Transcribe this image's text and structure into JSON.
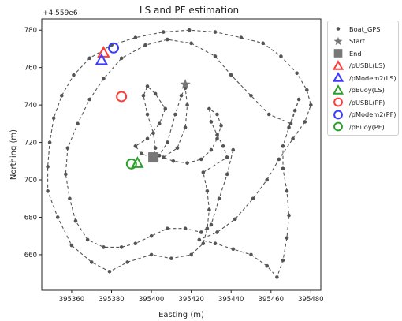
{
  "chart_data": {
    "type": "scatter",
    "title": "LS and PF estimation",
    "offset_label": "+4.559e6",
    "xlabel": "Easting (m)",
    "ylabel": "Northing (m)",
    "xlim": [
      395345,
      395485
    ],
    "ylim": [
      641,
      786
    ],
    "x_ticks": [
      395360,
      395380,
      395400,
      395420,
      395440,
      395460,
      395480
    ],
    "y_ticks": [
      660,
      680,
      700,
      720,
      740,
      760,
      780
    ],
    "x_tick_labels": [
      "395360",
      "395380",
      "395400",
      "395420",
      "395440",
      "395460",
      "395480"
    ],
    "y_tick_labels": [
      "660",
      "680",
      "700",
      "720",
      "740",
      "760",
      "780"
    ],
    "grid": false,
    "legend_position": "outside-right",
    "track_color": "#555555",
    "series": [
      {
        "name": "Boat_GPS",
        "marker": "dot",
        "color": "#555555",
        "points": [
          [
            395400,
            712
          ],
          [
            395395,
            714
          ],
          [
            395392,
            718
          ],
          [
            395398,
            722
          ],
          [
            395404,
            730
          ],
          [
            395407,
            738
          ],
          [
            395402,
            746
          ],
          [
            395398,
            750
          ],
          [
            395396,
            745
          ],
          [
            395398,
            735
          ],
          [
            395401,
            725
          ],
          [
            395402,
            717
          ],
          [
            395401,
            712
          ],
          [
            395404,
            713
          ],
          [
            395408,
            720
          ],
          [
            395412,
            735
          ],
          [
            395415,
            745
          ],
          [
            395417,
            749
          ],
          [
            395418,
            740
          ],
          [
            395417,
            728
          ],
          [
            395413,
            717
          ],
          [
            395406,
            712
          ],
          [
            395411,
            710
          ],
          [
            395418,
            709
          ],
          [
            395425,
            711
          ],
          [
            395430,
            716
          ],
          [
            395433,
            722
          ],
          [
            395435,
            729
          ],
          [
            395433,
            735
          ],
          [
            395429,
            738
          ],
          [
            395430,
            731
          ],
          [
            395433,
            724
          ],
          [
            395436,
            718
          ],
          [
            395438,
            712
          ],
          [
            395426,
            704
          ],
          [
            395428,
            694
          ],
          [
            395429,
            684
          ],
          [
            395428,
            674
          ],
          [
            395426,
            666
          ],
          [
            395420,
            660
          ],
          [
            395410,
            658
          ],
          [
            395400,
            660
          ],
          [
            395388,
            656
          ],
          [
            395379,
            651
          ],
          [
            395370,
            656
          ],
          [
            395360,
            665
          ],
          [
            395353,
            680
          ],
          [
            395348,
            694
          ],
          [
            395348,
            707
          ],
          [
            395349,
            720
          ],
          [
            395351,
            733
          ],
          [
            395355,
            745
          ],
          [
            395361,
            756
          ],
          [
            395369,
            765
          ],
          [
            395380,
            772
          ],
          [
            395392,
            776
          ],
          [
            395406,
            779
          ],
          [
            395419,
            780
          ],
          [
            395432,
            779
          ],
          [
            395445,
            776
          ],
          [
            395456,
            773
          ],
          [
            395465,
            766
          ],
          [
            395473,
            757
          ],
          [
            395478,
            748
          ],
          [
            395480,
            740
          ],
          [
            395477,
            731
          ],
          [
            395471,
            722
          ],
          [
            395464,
            711
          ],
          [
            395458,
            700
          ],
          [
            395451,
            690
          ],
          [
            395442,
            679
          ],
          [
            395433,
            672
          ],
          [
            395424,
            668
          ],
          [
            395432,
            666
          ],
          [
            395441,
            663
          ],
          [
            395450,
            660
          ],
          [
            395458,
            654
          ],
          [
            395463,
            648
          ],
          [
            395466,
            657
          ],
          [
            395468,
            669
          ],
          [
            395469,
            681
          ],
          [
            395468,
            694
          ],
          [
            395466,
            706
          ],
          [
            395466,
            718
          ],
          [
            395469,
            728
          ],
          [
            395472,
            737
          ],
          [
            395474,
            743
          ],
          [
            395470,
            730
          ],
          [
            395459,
            735
          ],
          [
            395450,
            745
          ],
          [
            395440,
            756
          ],
          [
            395432,
            766
          ],
          [
            395420,
            773
          ],
          [
            395408,
            775
          ],
          [
            395397,
            772
          ],
          [
            395385,
            765
          ],
          [
            395376,
            754
          ],
          [
            395369,
            743
          ],
          [
            395363,
            730
          ],
          [
            395358,
            717
          ],
          [
            395357,
            703
          ],
          [
            395359,
            690
          ],
          [
            395362,
            678
          ],
          [
            395368,
            668
          ],
          [
            395376,
            664
          ],
          [
            395385,
            664
          ],
          [
            395392,
            666
          ],
          [
            395400,
            670
          ],
          [
            395408,
            674
          ],
          [
            395417,
            674
          ],
          [
            395425,
            672
          ],
          [
            395430,
            676
          ],
          [
            395434,
            690
          ],
          [
            395438,
            703
          ],
          [
            395441,
            716
          ]
        ]
      },
      {
        "name": "Start",
        "marker": "star",
        "color": "#777777",
        "points": [
          [
            395417,
            751
          ]
        ]
      },
      {
        "name": "End",
        "marker": "square",
        "color": "#777777",
        "points": [
          [
            395401,
            712
          ]
        ]
      },
      {
        "name": "/pUSBL(LS)",
        "marker": "triangle",
        "color": "#ff3b3b",
        "points": [
          [
            395376,
            768
          ]
        ]
      },
      {
        "name": "/pModem2(LS)",
        "marker": "triangle",
        "color": "#3b3bff",
        "points": [
          [
            395375,
            764
          ]
        ]
      },
      {
        "name": "/pBuoy(LS)",
        "marker": "triangle",
        "color": "#2ca02c",
        "points": [
          [
            395393,
            709
          ]
        ]
      },
      {
        "name": "/pUSBL(PF)",
        "marker": "circle",
        "color": "#ff3b3b",
        "points": [
          [
            395385,
            744.5
          ]
        ]
      },
      {
        "name": "/pModem2(PF)",
        "marker": "circle",
        "color": "#3b3bff",
        "points": [
          [
            395381,
            770.5
          ]
        ]
      },
      {
        "name": "/pBuoy(PF)",
        "marker": "circle",
        "color": "#2ca02c",
        "points": [
          [
            395390,
            708.5
          ]
        ]
      }
    ]
  }
}
